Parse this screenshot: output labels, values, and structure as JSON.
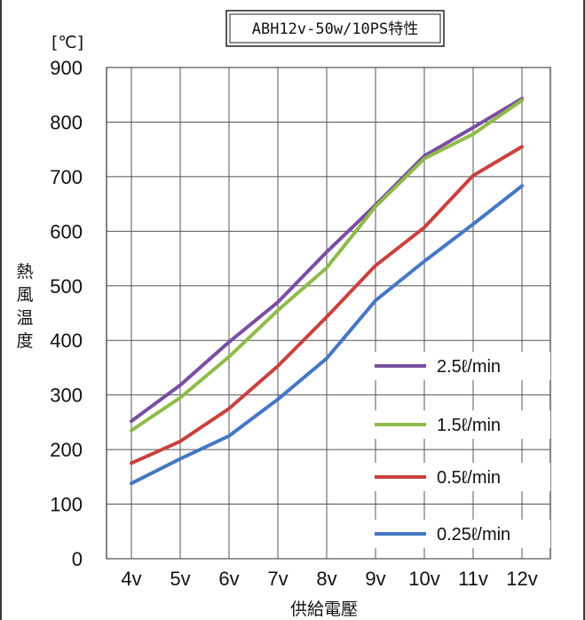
{
  "chart_data": {
    "type": "line",
    "title": "ABH12v-50w/10PS特性",
    "unit_label": "[℃]",
    "ylabel": "熱風温度",
    "xlabel": "供給電壓",
    "categories": [
      "4v",
      "5v",
      "6v",
      "7v",
      "8v",
      "9v",
      "10v",
      "11v",
      "12v"
    ],
    "ylim": [
      0,
      900
    ],
    "yticks": [
      "0",
      "100",
      "200",
      "300",
      "400",
      "500",
      "600",
      "700",
      "800",
      "900"
    ],
    "grid": true,
    "legend_position": "bottom-right",
    "series": [
      {
        "name": "2.5ℓ/min",
        "color": "#7b4ea3",
        "values": [
          252,
          318,
          397,
          470,
          562,
          648,
          738,
          790,
          843
        ]
      },
      {
        "name": "1.5ℓ/min",
        "color": "#8fbb4a",
        "values": [
          235,
          295,
          370,
          455,
          533,
          645,
          733,
          778,
          840
        ]
      },
      {
        "name": "0.5ℓ/min",
        "color": "#c9413e",
        "values": [
          175,
          215,
          275,
          353,
          443,
          537,
          607,
          702,
          755
        ]
      },
      {
        "name": "0.25ℓ/min",
        "color": "#4477c4",
        "values": [
          138,
          183,
          225,
          292,
          367,
          473,
          545,
          613,
          683
        ]
      }
    ]
  }
}
